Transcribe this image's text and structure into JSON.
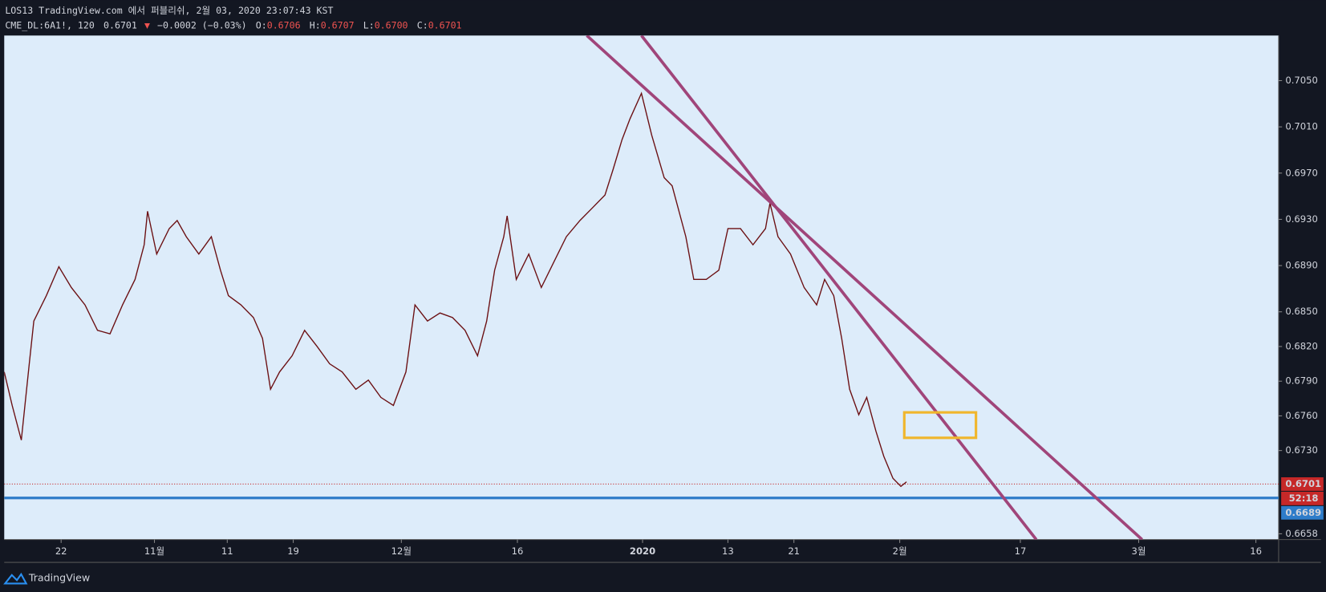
{
  "header": {
    "title": "LOS13 TradingView.com 에서 퍼블리쉬, 2월 03, 2020 23:07:43 KST",
    "symbol": "CME_DL:6A1!, 120",
    "last": "0.6701",
    "change": "−0.0002 (−0.03%)",
    "ohlc": [
      {
        "key": "O:",
        "value": "0.6706"
      },
      {
        "key": "H:",
        "value": "0.6707"
      },
      {
        "key": "L:",
        "value": "0.6700"
      },
      {
        "key": "C:",
        "value": "0.6701"
      }
    ]
  },
  "footer": {
    "brand": "TradingView"
  },
  "chart_data": {
    "type": "line",
    "color": "#6b0f12",
    "background": "#ddecfa",
    "x": [
      0,
      0.7,
      1.5,
      2.2,
      2.6,
      3.7,
      4.8,
      5.9,
      7.1,
      8.2,
      9.3,
      10.4,
      11.5,
      12.3,
      12.6,
      13.4,
      14.5,
      15.2,
      16.0,
      17.1,
      18.2,
      19.0,
      19.7,
      20.8,
      21.9,
      22.7,
      23.4,
      24.2,
      25.3,
      26.4,
      27.5,
      28.6,
      29.7,
      30.9,
      32.0,
      33.1,
      34.2,
      35.3,
      36.1,
      37.2,
      38.3,
      39.4,
      40.5,
      41.6,
      42.4,
      43.1,
      43.9,
      44.2,
      45.0,
      46.1,
      47.2,
      48.3,
      49.4,
      50.6,
      51.7,
      52.8,
      53.5,
      54.3,
      55.0,
      56.0,
      56.9,
      58.0,
      58.7,
      59.9,
      60.6,
      61.7,
      62.8,
      63.6,
      64.7,
      65.8,
      66.9,
      67.3,
      68.0,
      69.1,
      70.3,
      71.4,
      72.1,
      72.9,
      73.6,
      74.3,
      75.1,
      75.8,
      76.6,
      77.3,
      78.1,
      78.8,
      79.3
    ],
    "values": [
      0.6798,
      0.6769,
      0.6739,
      0.6805,
      0.6842,
      0.6864,
      0.6889,
      0.6871,
      0.6856,
      0.6834,
      0.6831,
      0.6856,
      0.6878,
      0.6908,
      0.6937,
      0.69,
      0.6922,
      0.6929,
      0.6915,
      0.69,
      0.6915,
      0.6886,
      0.6864,
      0.6856,
      0.6845,
      0.6827,
      0.6783,
      0.6798,
      0.6812,
      0.6834,
      0.682,
      0.6805,
      0.6798,
      0.6783,
      0.6791,
      0.6776,
      0.6769,
      0.6798,
      0.6856,
      0.6842,
      0.6849,
      0.6845,
      0.6834,
      0.6812,
      0.6842,
      0.6886,
      0.6915,
      0.6933,
      0.6878,
      0.69,
      0.6871,
      0.6893,
      0.6915,
      0.6929,
      0.694,
      0.6951,
      0.6973,
      0.6999,
      0.7017,
      0.7039,
      0.7003,
      0.6966,
      0.6959,
      0.6915,
      0.6878,
      0.6878,
      0.6886,
      0.6922,
      0.6922,
      0.6908,
      0.6922,
      0.6944,
      0.6915,
      0.69,
      0.6871,
      0.6856,
      0.6878,
      0.6864,
      0.6827,
      0.6783,
      0.6761,
      0.6776,
      0.6747,
      0.6725,
      0.6706,
      0.6699,
      0.6703
    ],
    "xlim": [
      0,
      112
    ],
    "xticks": [
      {
        "value": 5.0,
        "label": "22"
      },
      {
        "value": 13.2,
        "label": "11월"
      },
      {
        "value": 19.6,
        "label": "11"
      },
      {
        "value": 25.4,
        "label": "19"
      },
      {
        "value": 34.9,
        "label": "12월"
      },
      {
        "value": 45.1,
        "label": "16"
      },
      {
        "value": 56.1,
        "label": "2020"
      },
      {
        "value": 63.6,
        "label": "13"
      },
      {
        "value": 69.4,
        "label": "21"
      },
      {
        "value": 78.7,
        "label": "2월"
      },
      {
        "value": 89.3,
        "label": "17"
      },
      {
        "value": 99.7,
        "label": "3월"
      },
      {
        "value": 110.0,
        "label": "16"
      }
    ],
    "ylim": [
      0.6653,
      0.7089
    ],
    "yticks": [
      {
        "value": 0.705,
        "label": "0.7050"
      },
      {
        "value": 0.701,
        "label": "0.7010"
      },
      {
        "value": 0.697,
        "label": "0.6970"
      },
      {
        "value": 0.693,
        "label": "0.6930"
      },
      {
        "value": 0.689,
        "label": "0.6890"
      },
      {
        "value": 0.685,
        "label": "0.6850"
      },
      {
        "value": 0.682,
        "label": "0.6820"
      },
      {
        "value": 0.679,
        "label": "0.6790"
      },
      {
        "value": 0.676,
        "label": "0.6760"
      },
      {
        "value": 0.673,
        "label": "0.6730"
      },
      0.6658
    ],
    "price_line": {
      "value": 0.6701,
      "color": "#c62828"
    },
    "countdown": "52:18",
    "horizontal_line": {
      "value": 0.6689,
      "color": "#2e7cc9"
    },
    "trend_lines": [
      {
        "x": [
          51.2,
          100.0
        ],
        "y": [
          0.7089,
          0.6653
        ],
        "color": "#a0457a"
      },
      {
        "x": [
          56.0,
          90.7
        ],
        "y": [
          0.7089,
          0.6653
        ],
        "color": "#a0457a"
      }
    ],
    "rectangle": {
      "x": [
        79.1,
        85.4
      ],
      "y": [
        0.6741,
        0.6763
      ],
      "color": "#f0b62c"
    }
  }
}
